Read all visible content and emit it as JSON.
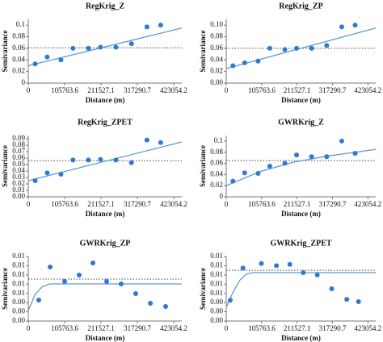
{
  "chart_data": [
    {
      "type": "scatter",
      "title": "RegKrig_Z",
      "x_label": "Distance (m)",
      "y_label": "Semivariance",
      "xlim": [
        0,
        446500
      ],
      "xticks": [
        0,
        105763.6,
        211527.1,
        317290.7,
        423054.2
      ],
      "ylim": [
        0,
        0.11
      ],
      "yticks": [
        0,
        0.02,
        0.04,
        0.06,
        0.08,
        0.1
      ],
      "color": "#2f78d4",
      "line_color": "#5b9bd5",
      "points": {
        "x": [
          20000,
          55000,
          95000,
          130000,
          175000,
          210000,
          255000,
          300000,
          345000,
          385000
        ],
        "values": [
          0.033,
          0.045,
          0.04,
          0.06,
          0.06,
          0.062,
          0.062,
          0.068,
          0.097,
          0.1
        ]
      },
      "fit_line": {
        "x": [
          0,
          446500
        ],
        "values": [
          0.03,
          0.095
        ]
      },
      "reference_line": 0.061
    },
    {
      "type": "scatter",
      "title": "RegKrig_ZP",
      "x_label": "Distance (m)",
      "y_label": "Semivariance",
      "xlim": [
        0,
        446500
      ],
      "xticks": [
        0,
        105763.6,
        211527.1,
        317290.7,
        423054.2
      ],
      "ylim": [
        0,
        0.11
      ],
      "yticks": [
        {
          "value": 0,
          "label": "0.00"
        },
        0.02,
        0.04,
        0.06,
        0.08,
        {
          "value": 0.1,
          "label": "0.10"
        }
      ],
      "color": "#2f78d4",
      "line_color": "#5b9bd5",
      "points": {
        "x": [
          20000,
          55000,
          95000,
          130000,
          175000,
          210000,
          255000,
          300000,
          345000,
          385000
        ],
        "values": [
          0.03,
          0.035,
          0.038,
          0.06,
          0.058,
          0.06,
          0.06,
          0.065,
          0.097,
          0.1
        ]
      },
      "fit_line": {
        "x": [
          0,
          446500
        ],
        "values": [
          0.025,
          0.095
        ]
      },
      "reference_line": 0.06
    },
    {
      "type": "scatter",
      "title": "RegKrig_ZPET",
      "x_label": "Distance (m)",
      "y_label": "Semivariance",
      "xlim": [
        0,
        446500
      ],
      "xticks": [
        0,
        105763.6,
        211527.1,
        317290.7,
        423054.2
      ],
      "ylim": [
        0,
        0.095
      ],
      "yticks": [
        {
          "value": 0,
          "label": "0.00"
        },
        0.01,
        0.02,
        0.03,
        0.04,
        0.05,
        0.06,
        0.07,
        0.08,
        0.09
      ],
      "color": "#2f78d4",
      "line_color": "#5b9bd5",
      "points": {
        "x": [
          20000,
          55000,
          95000,
          130000,
          175000,
          210000,
          255000,
          300000,
          345000,
          385000
        ],
        "values": [
          0.025,
          0.037,
          0.035,
          0.057,
          0.057,
          0.058,
          0.057,
          0.053,
          0.088,
          0.084
        ]
      },
      "fit_line": {
        "x": [
          0,
          446500
        ],
        "values": [
          0.025,
          0.085
        ]
      },
      "reference_line": 0.056
    },
    {
      "type": "scatter",
      "title": "GWRKrig_Z",
      "x_label": "Distance (m)",
      "y_label": "Semivariance",
      "xlim": [
        0,
        446500
      ],
      "xticks": [
        0,
        105763.6,
        211527.1,
        317290.7,
        423054.2
      ],
      "ylim": [
        0,
        0.11
      ],
      "yticks": [
        0,
        0.02,
        0.04,
        0.06,
        0.08,
        0.1
      ],
      "color": "#2f78d4",
      "line_color": "#5b9bd5",
      "points": {
        "x": [
          20000,
          55000,
          95000,
          130000,
          175000,
          210000,
          255000,
          300000,
          345000,
          385000
        ],
        "values": [
          0.028,
          0.043,
          0.042,
          0.055,
          0.06,
          0.075,
          0.072,
          0.072,
          0.1,
          0.078
        ]
      },
      "fit_line": {
        "x": [
          0,
          100000,
          200000,
          300000,
          446500
        ],
        "values": [
          0.02,
          0.045,
          0.062,
          0.073,
          0.085
        ]
      },
      "reference_line": 0.065
    },
    {
      "type": "scatter",
      "title": "GWRKrig_ZP",
      "x_label": "Distance (m)",
      "y_label": "Semivariance",
      "xlim": [
        0,
        446500
      ],
      "xticks": [
        0,
        105763.6,
        211527.1,
        317290.7,
        423054.2
      ],
      "ylim": [
        0,
        0.014
      ],
      "yticks": [
        {
          "value": 0,
          "label": "0.00"
        },
        {
          "value": 0.002,
          "label": "0.00"
        },
        {
          "value": 0.004,
          "label": "0.00"
        },
        {
          "value": 0.006,
          "label": "0.01"
        },
        {
          "value": 0.008,
          "label": "0.01"
        },
        {
          "value": 0.01,
          "label": "0.01"
        },
        {
          "value": 0.012,
          "label": "0.01"
        },
        {
          "value": 0.014,
          "label": "0.01"
        }
      ],
      "color": "#2f78d4",
      "line_color": "#5b9bd5",
      "points": {
        "x": [
          30500,
          63500,
          105800,
          148000,
          188000,
          228000,
          270000,
          312500,
          355000,
          399500
        ],
        "values": [
          0.00455,
          0.01173,
          0.00858,
          0.00998,
          0.0126,
          0.00858,
          0.00805,
          0.00595,
          0.00385,
          0.00315
        ]
      },
      "fit_line": {
        "x": [
          0,
          20000,
          40000,
          60000,
          70500,
          446500
        ],
        "values": [
          0.0023,
          0.0058,
          0.0074,
          0.008,
          0.00805,
          0.00805
        ]
      },
      "reference_line": 0.0091
    },
    {
      "type": "scatter",
      "title": "GWRKrig_ZPET",
      "x_label": "Distance (m)",
      "y_label": "Semivariance",
      "xlim": [
        0,
        446500
      ],
      "xticks": [
        0,
        105763.6,
        211527.1,
        317290.7,
        423054.2
      ],
      "ylim": [
        0,
        0.014
      ],
      "yticks": [
        {
          "value": 0,
          "label": "0.00"
        },
        {
          "value": 0.002,
          "label": "0.00"
        },
        {
          "value": 0.004,
          "label": "0.00"
        },
        {
          "value": 0.006,
          "label": "0.01"
        },
        {
          "value": 0.008,
          "label": "0.01"
        },
        {
          "value": 0.01,
          "label": "0.01"
        },
        {
          "value": 0.012,
          "label": "0.01"
        },
        {
          "value": 0.014,
          "label": "0.01"
        }
      ],
      "color": "#2f78d4",
      "line_color": "#5b9bd5",
      "points": {
        "x": [
          12000,
          50000,
          105000,
          150000,
          190000,
          230000,
          272000,
          315000,
          360000,
          395000
        ],
        "values": [
          0.0045,
          0.0115,
          0.0125,
          0.012,
          0.0123,
          0.0105,
          0.01,
          0.007,
          0.0047,
          0.0042
        ]
      },
      "fit_line": {
        "x": [
          0,
          20000,
          40000,
          60000,
          80000,
          446500
        ],
        "values": [
          0.003,
          0.0062,
          0.0088,
          0.0102,
          0.0105,
          0.0105
        ]
      },
      "reference_line": 0.011
    }
  ]
}
